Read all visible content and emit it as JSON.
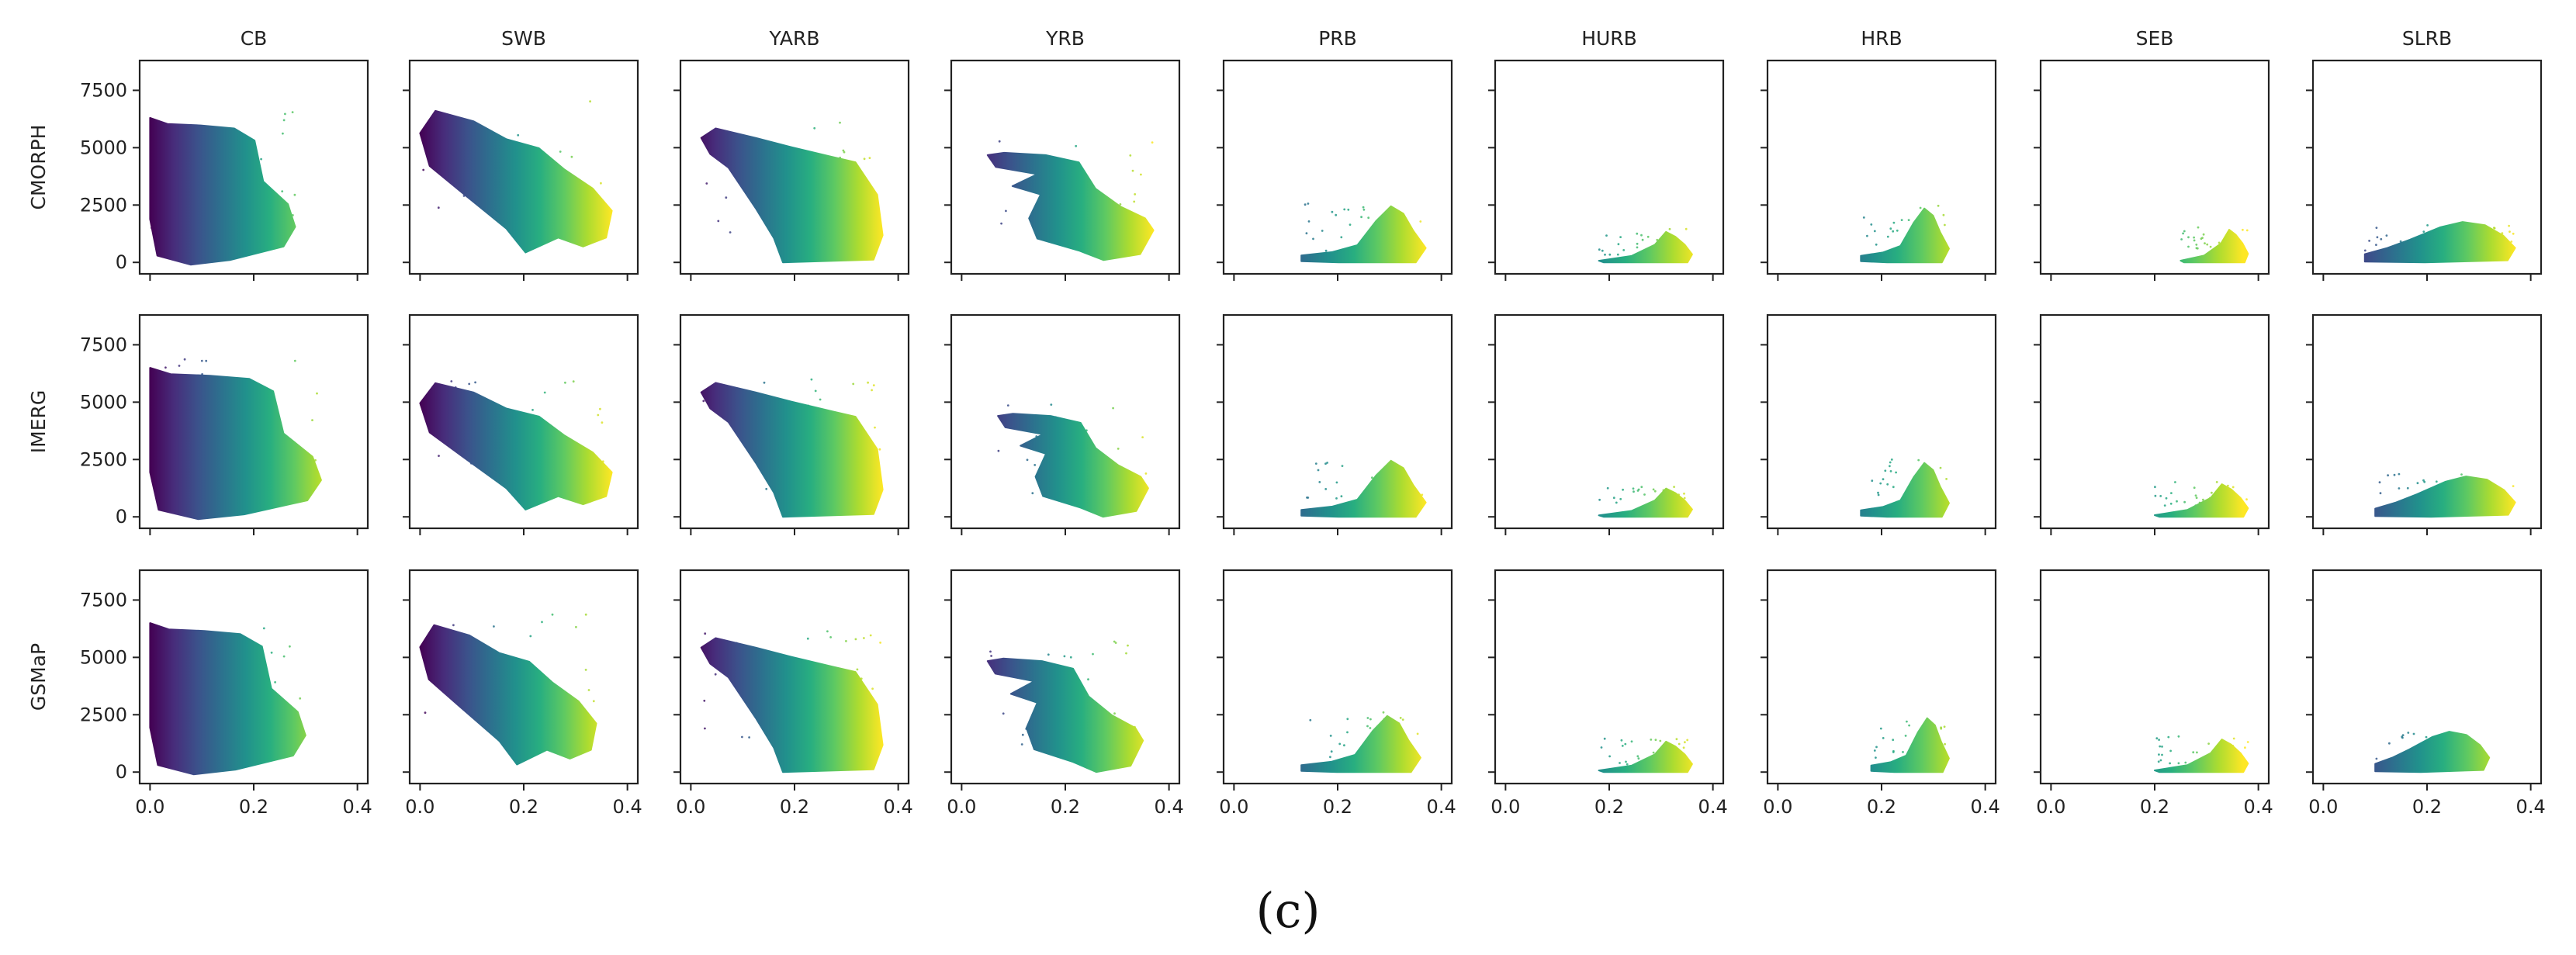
{
  "chart_data": {
    "type": "scatter",
    "layout": "3x9 grid of small-multiple scatter panels",
    "columns": [
      "CB",
      "SWB",
      "YARB",
      "YRB",
      "PRB",
      "HURB",
      "HRB",
      "SEB",
      "SLRB"
    ],
    "rows": [
      "CMORPH",
      "IMERG",
      "GSMaP"
    ],
    "caption": "(c)",
    "xlim": [
      -0.02,
      0.42
    ],
    "ylim": [
      -500,
      8800
    ],
    "x_ticks": [
      0.0,
      0.2,
      0.4
    ],
    "x_tick_labels": [
      "0.0",
      "0.2",
      "0.4"
    ],
    "y_ticks": [
      0,
      2500,
      5000,
      7500
    ],
    "y_tick_labels": [
      "0",
      "2500",
      "5000",
      "7500"
    ],
    "xlabel": "",
    "ylabel": "",
    "grid": false,
    "color_encoding": "points colored by x value (viridis: purple at low x to yellow at high x)",
    "colors": {
      "viridis_stops": [
        "#440154",
        "#472d7b",
        "#3b528b",
        "#2c728e",
        "#21918c",
        "#28ae80",
        "#5ec962",
        "#addc30",
        "#fde725"
      ],
      "frame": "#222222",
      "background": "#ffffff"
    },
    "panels": [
      [
        {
          "basin": "CB",
          "dataset": "CMORPH",
          "x_range": [
            0.0,
            0.28
          ],
          "y_range": [
            -100,
            6500
          ],
          "shape": "fan"
        },
        {
          "basin": "SWB",
          "dataset": "CMORPH",
          "x_range": [
            0.0,
            0.37
          ],
          "y_range": [
            300,
            6800
          ],
          "shape": "diag"
        },
        {
          "basin": "YARB",
          "dataset": "CMORPH",
          "x_range": [
            0.02,
            0.37
          ],
          "y_range": [
            0,
            5900
          ],
          "shape": "plateau"
        },
        {
          "basin": "YRB",
          "dataset": "CMORPH",
          "x_range": [
            0.05,
            0.37
          ],
          "y_range": [
            100,
            5300
          ],
          "shape": "band"
        },
        {
          "basin": "PRB",
          "dataset": "CMORPH",
          "x_range": [
            0.13,
            0.37
          ],
          "y_range": [
            0,
            2500
          ],
          "shape": "mound"
        },
        {
          "basin": "HURB",
          "dataset": "CMORPH",
          "x_range": [
            0.18,
            0.36
          ],
          "y_range": [
            0,
            1400
          ],
          "shape": "wedge"
        },
        {
          "basin": "HRB",
          "dataset": "CMORPH",
          "x_range": [
            0.16,
            0.33
          ],
          "y_range": [
            0,
            2400
          ],
          "shape": "mound"
        },
        {
          "basin": "SEB",
          "dataset": "CMORPH",
          "x_range": [
            0.25,
            0.38
          ],
          "y_range": [
            0,
            1500
          ],
          "shape": "wedge"
        },
        {
          "basin": "SLRB",
          "dataset": "CMORPH",
          "x_range": [
            0.08,
            0.37
          ],
          "y_range": [
            0,
            1800
          ],
          "shape": "dome"
        }
      ],
      [
        {
          "basin": "CB",
          "dataset": "IMERG",
          "x_range": [
            0.0,
            0.33
          ],
          "y_range": [
            -100,
            6700
          ],
          "shape": "fan"
        },
        {
          "basin": "SWB",
          "dataset": "IMERG",
          "x_range": [
            0.0,
            0.37
          ],
          "y_range": [
            200,
            6000
          ],
          "shape": "diag"
        },
        {
          "basin": "YARB",
          "dataset": "IMERG",
          "x_range": [
            0.02,
            0.37
          ],
          "y_range": [
            0,
            5900
          ],
          "shape": "plateau"
        },
        {
          "basin": "YRB",
          "dataset": "IMERG",
          "x_range": [
            0.07,
            0.36
          ],
          "y_range": [
            0,
            5000
          ],
          "shape": "band"
        },
        {
          "basin": "PRB",
          "dataset": "IMERG",
          "x_range": [
            0.13,
            0.37
          ],
          "y_range": [
            0,
            2500
          ],
          "shape": "mound"
        },
        {
          "basin": "HURB",
          "dataset": "IMERG",
          "x_range": [
            0.18,
            0.36
          ],
          "y_range": [
            0,
            1300
          ],
          "shape": "wedge"
        },
        {
          "basin": "HRB",
          "dataset": "IMERG",
          "x_range": [
            0.16,
            0.33
          ],
          "y_range": [
            0,
            2400
          ],
          "shape": "mound"
        },
        {
          "basin": "SEB",
          "dataset": "IMERG",
          "x_range": [
            0.2,
            0.38
          ],
          "y_range": [
            0,
            1500
          ],
          "shape": "wedge"
        },
        {
          "basin": "SLRB",
          "dataset": "IMERG",
          "x_range": [
            0.1,
            0.37
          ],
          "y_range": [
            0,
            1800
          ],
          "shape": "dome"
        }
      ],
      [
        {
          "basin": "CB",
          "dataset": "GSMaP",
          "x_range": [
            0.0,
            0.3
          ],
          "y_range": [
            -100,
            6700
          ],
          "shape": "fan"
        },
        {
          "basin": "SWB",
          "dataset": "GSMaP",
          "x_range": [
            0.0,
            0.34
          ],
          "y_range": [
            200,
            6600
          ],
          "shape": "diag"
        },
        {
          "basin": "YARB",
          "dataset": "GSMaP",
          "x_range": [
            0.02,
            0.37
          ],
          "y_range": [
            0,
            5900
          ],
          "shape": "plateau"
        },
        {
          "basin": "YRB",
          "dataset": "GSMaP",
          "x_range": [
            0.05,
            0.35
          ],
          "y_range": [
            0,
            5500
          ],
          "shape": "band"
        },
        {
          "basin": "PRB",
          "dataset": "GSMaP",
          "x_range": [
            0.13,
            0.36
          ],
          "y_range": [
            0,
            2500
          ],
          "shape": "mound"
        },
        {
          "basin": "HURB",
          "dataset": "GSMaP",
          "x_range": [
            0.18,
            0.36
          ],
          "y_range": [
            0,
            1400
          ],
          "shape": "wedge"
        },
        {
          "basin": "HRB",
          "dataset": "GSMaP",
          "x_range": [
            0.18,
            0.33
          ],
          "y_range": [
            0,
            2400
          ],
          "shape": "mound"
        },
        {
          "basin": "SEB",
          "dataset": "GSMaP",
          "x_range": [
            0.2,
            0.38
          ],
          "y_range": [
            0,
            1500
          ],
          "shape": "wedge"
        },
        {
          "basin": "SLRB",
          "dataset": "GSMaP",
          "x_range": [
            0.1,
            0.32
          ],
          "y_range": [
            0,
            1800
          ],
          "shape": "dome"
        }
      ]
    ]
  }
}
